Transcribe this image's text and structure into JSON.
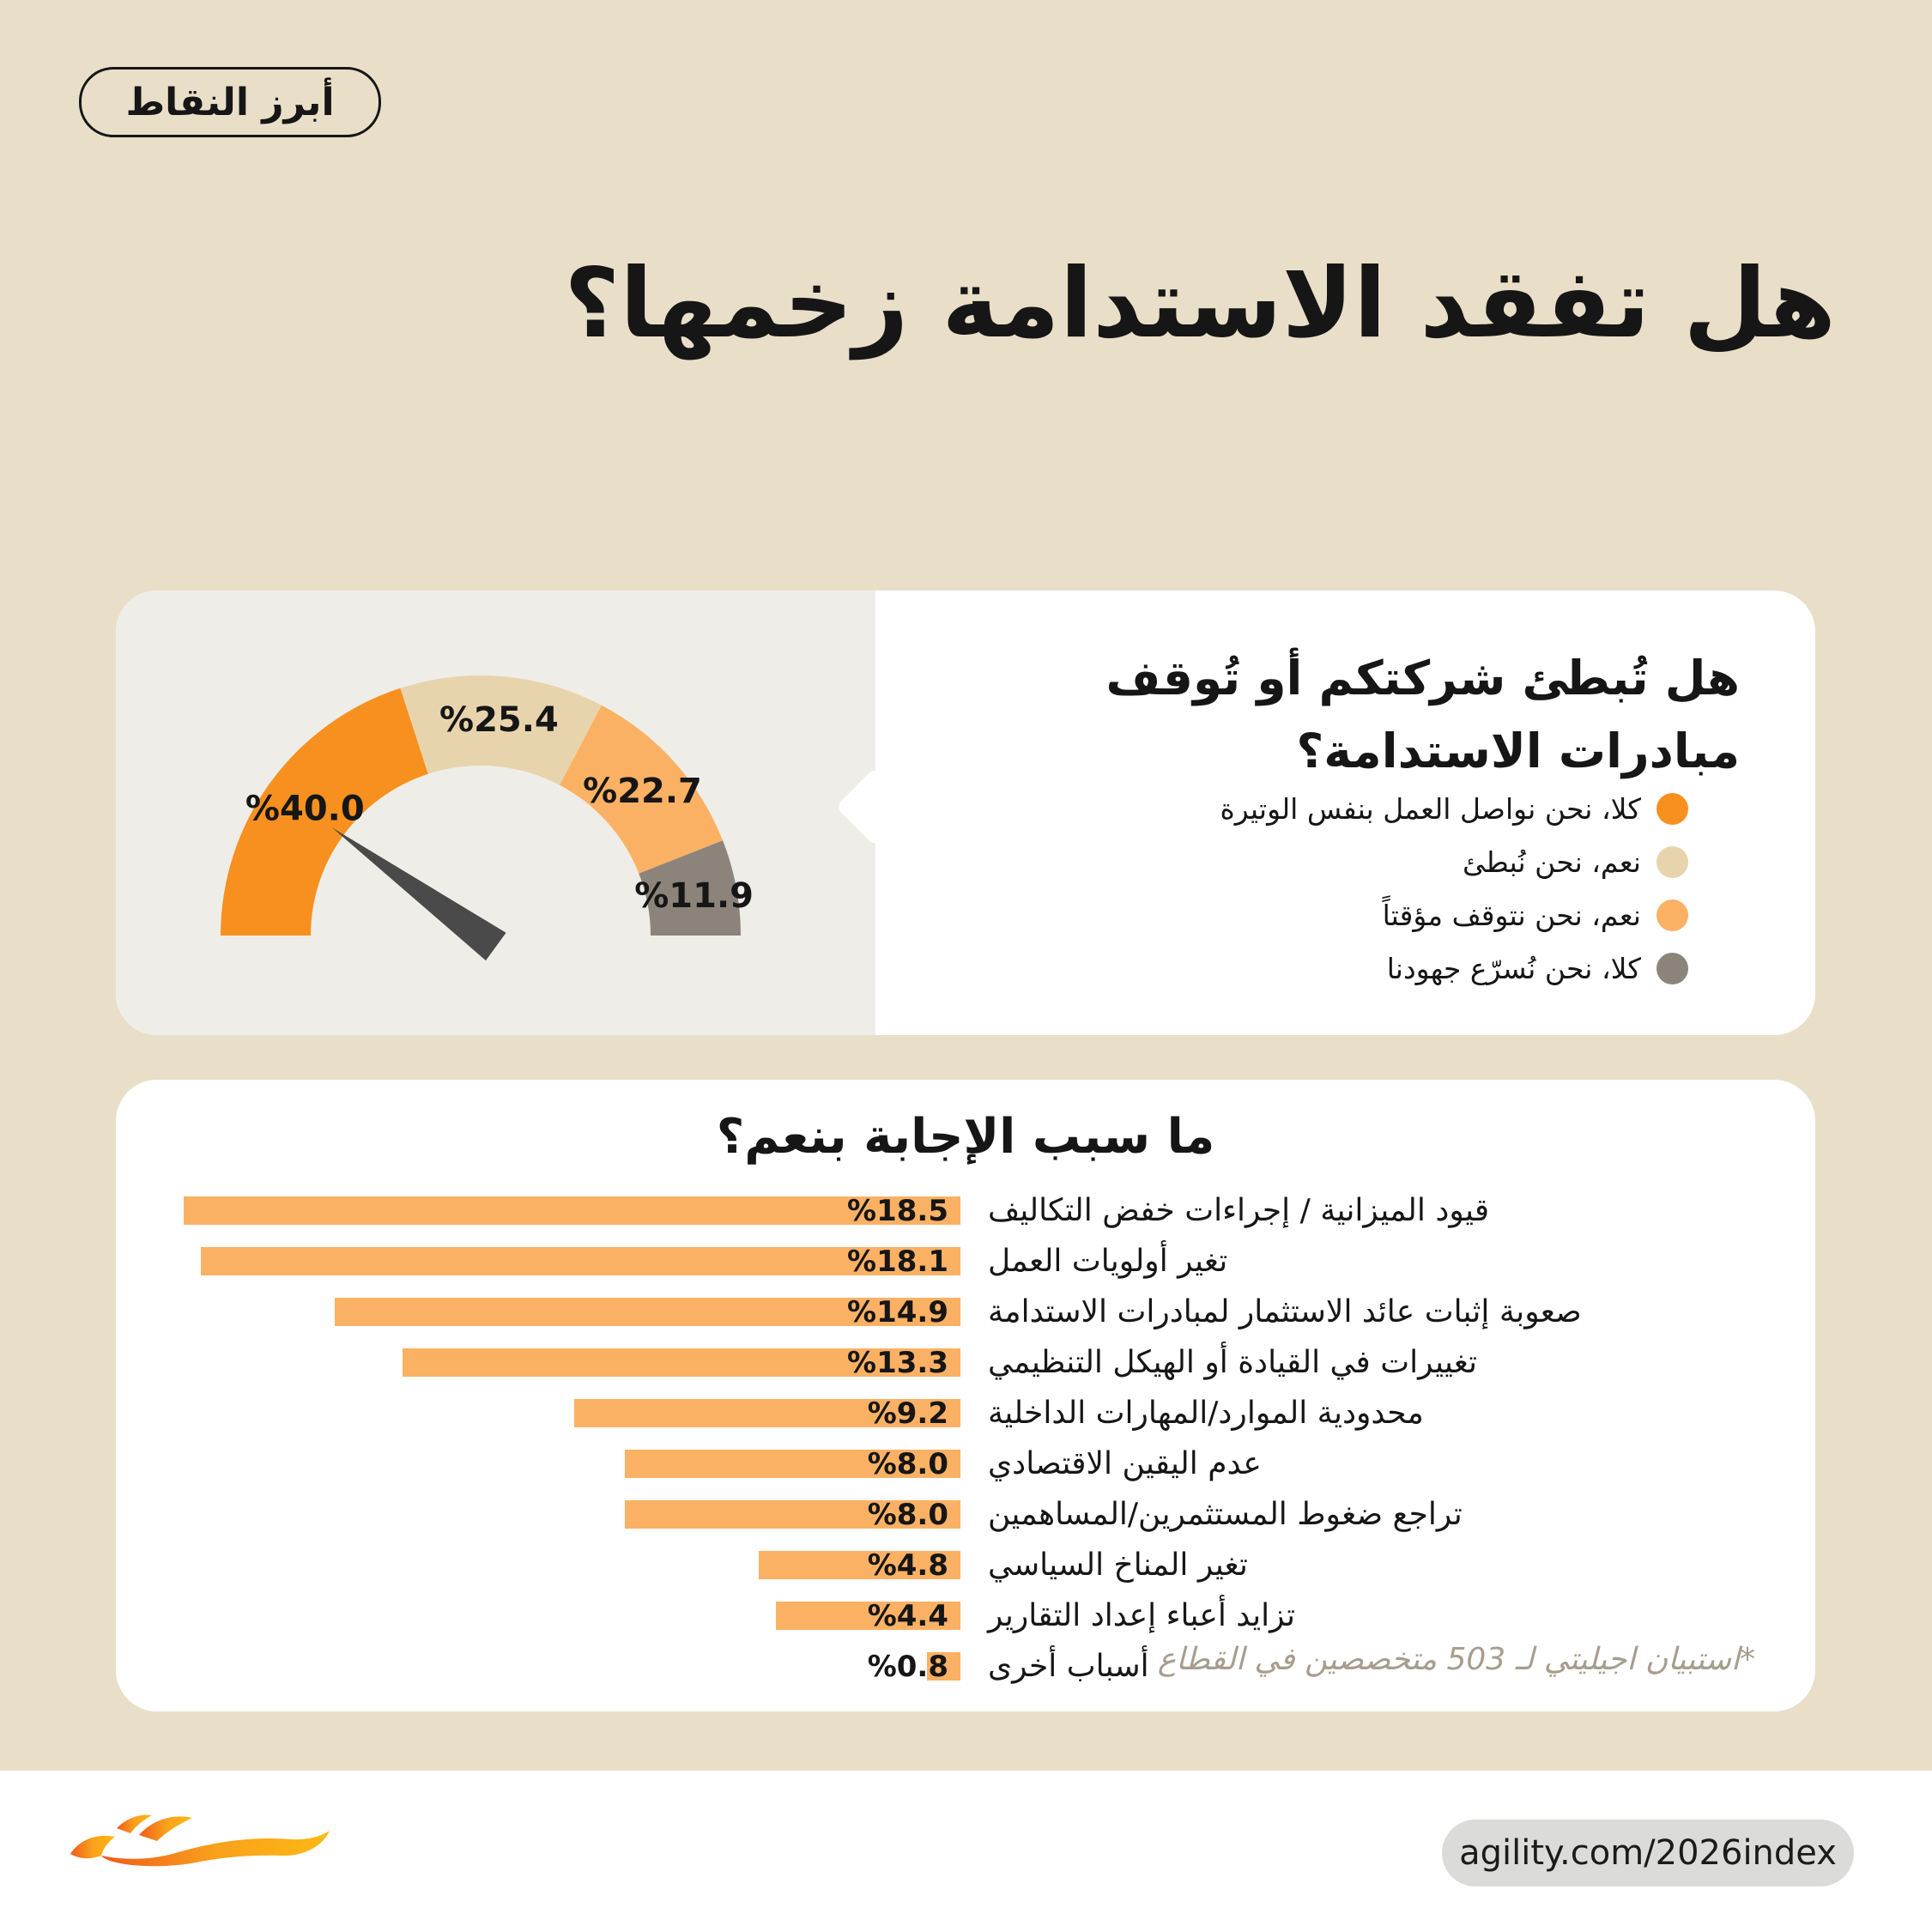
{
  "badge": {
    "label": "أبرز النقاط"
  },
  "title": "هل تفقد الاستدامة زخمها؟",
  "colors": {
    "background": "#E9DFC8",
    "card": "#FFFFFF",
    "panel": "#EFEDE8",
    "accent_orange": "#F7901E",
    "beige": "#E8D4AC",
    "light_orange": "#FBB164",
    "gray": "#8C847B",
    "needle": "#4A4A4A",
    "bar": "#FBB164",
    "text": "#161616",
    "footnote": "#A79D8D",
    "pill_bg": "#DBDBD9",
    "logo_gradient_start": "#F1591D",
    "logo_gradient_mid": "#F9A11B",
    "logo_gradient_end": "#FDB913"
  },
  "chart_data": [
    {
      "type": "gauge",
      "question_line1": "هل تُبطئ شركتكم أو تُوقف",
      "question_line2": "مبادرات الاستدامة؟",
      "needle_value": 20,
      "range": [
        0,
        100
      ],
      "segments": [
        {
          "label": "كلا، نحن نواصل العمل بنفس الوتيرة",
          "value": 40.0,
          "display": "%40.0",
          "color": "#F7901E"
        },
        {
          "label": "نعم، نحن نُبطئ",
          "value": 25.4,
          "display": "%25.4",
          "color": "#E8D4AC"
        },
        {
          "label": "نعم، نحن نتوقف مؤقتاً",
          "value": 22.7,
          "display": "%22.7",
          "color": "#FBB164"
        },
        {
          "label": "كلا، نحن نُسرّع جهودنا",
          "value": 11.9,
          "display": "%11.9",
          "color": "#8C847B"
        }
      ],
      "legend_position": "right"
    },
    {
      "type": "bar",
      "title": "ما سبب الإجابة بنعم؟",
      "orientation": "horizontal-rtl",
      "xlim": [
        0,
        18.5
      ],
      "footnote": "*استبيان اجيليتي لـ 503 متخصصين في القطاع",
      "items": [
        {
          "label": "قيود الميزانية / إجراءات خفض التكاليف",
          "value": 18.5,
          "display": "%18.5"
        },
        {
          "label": "تغير أولويات العمل",
          "value": 18.1,
          "display": "%18.1"
        },
        {
          "label": "صعوبة إثبات عائد الاستثمار لمبادرات الاستدامة",
          "value": 14.9,
          "display": "%14.9"
        },
        {
          "label": "تغييرات في القيادة أو الهيكل التنظيمي",
          "value": 13.3,
          "display": "%13.3"
        },
        {
          "label": "محدودية الموارد/المهارات الداخلية",
          "value": 9.2,
          "display": "%9.2"
        },
        {
          "label": "عدم اليقين الاقتصادي",
          "value": 8.0,
          "display": "%8.0"
        },
        {
          "label": "تراجع ضغوط المستثمرين/المساهمين",
          "value": 8.0,
          "display": "%8.0"
        },
        {
          "label": "تغير المناخ السياسي",
          "value": 4.8,
          "display": "%4.8"
        },
        {
          "label": "تزايد أعباء إعداد التقارير",
          "value": 4.4,
          "display": "%4.4"
        },
        {
          "label": "أسباب أخرى",
          "value": 0.8,
          "display": "%0.8"
        }
      ]
    }
  ],
  "footer": {
    "url": "agility.com/2026index",
    "logo": "agility-phoenix-flame-logo"
  }
}
